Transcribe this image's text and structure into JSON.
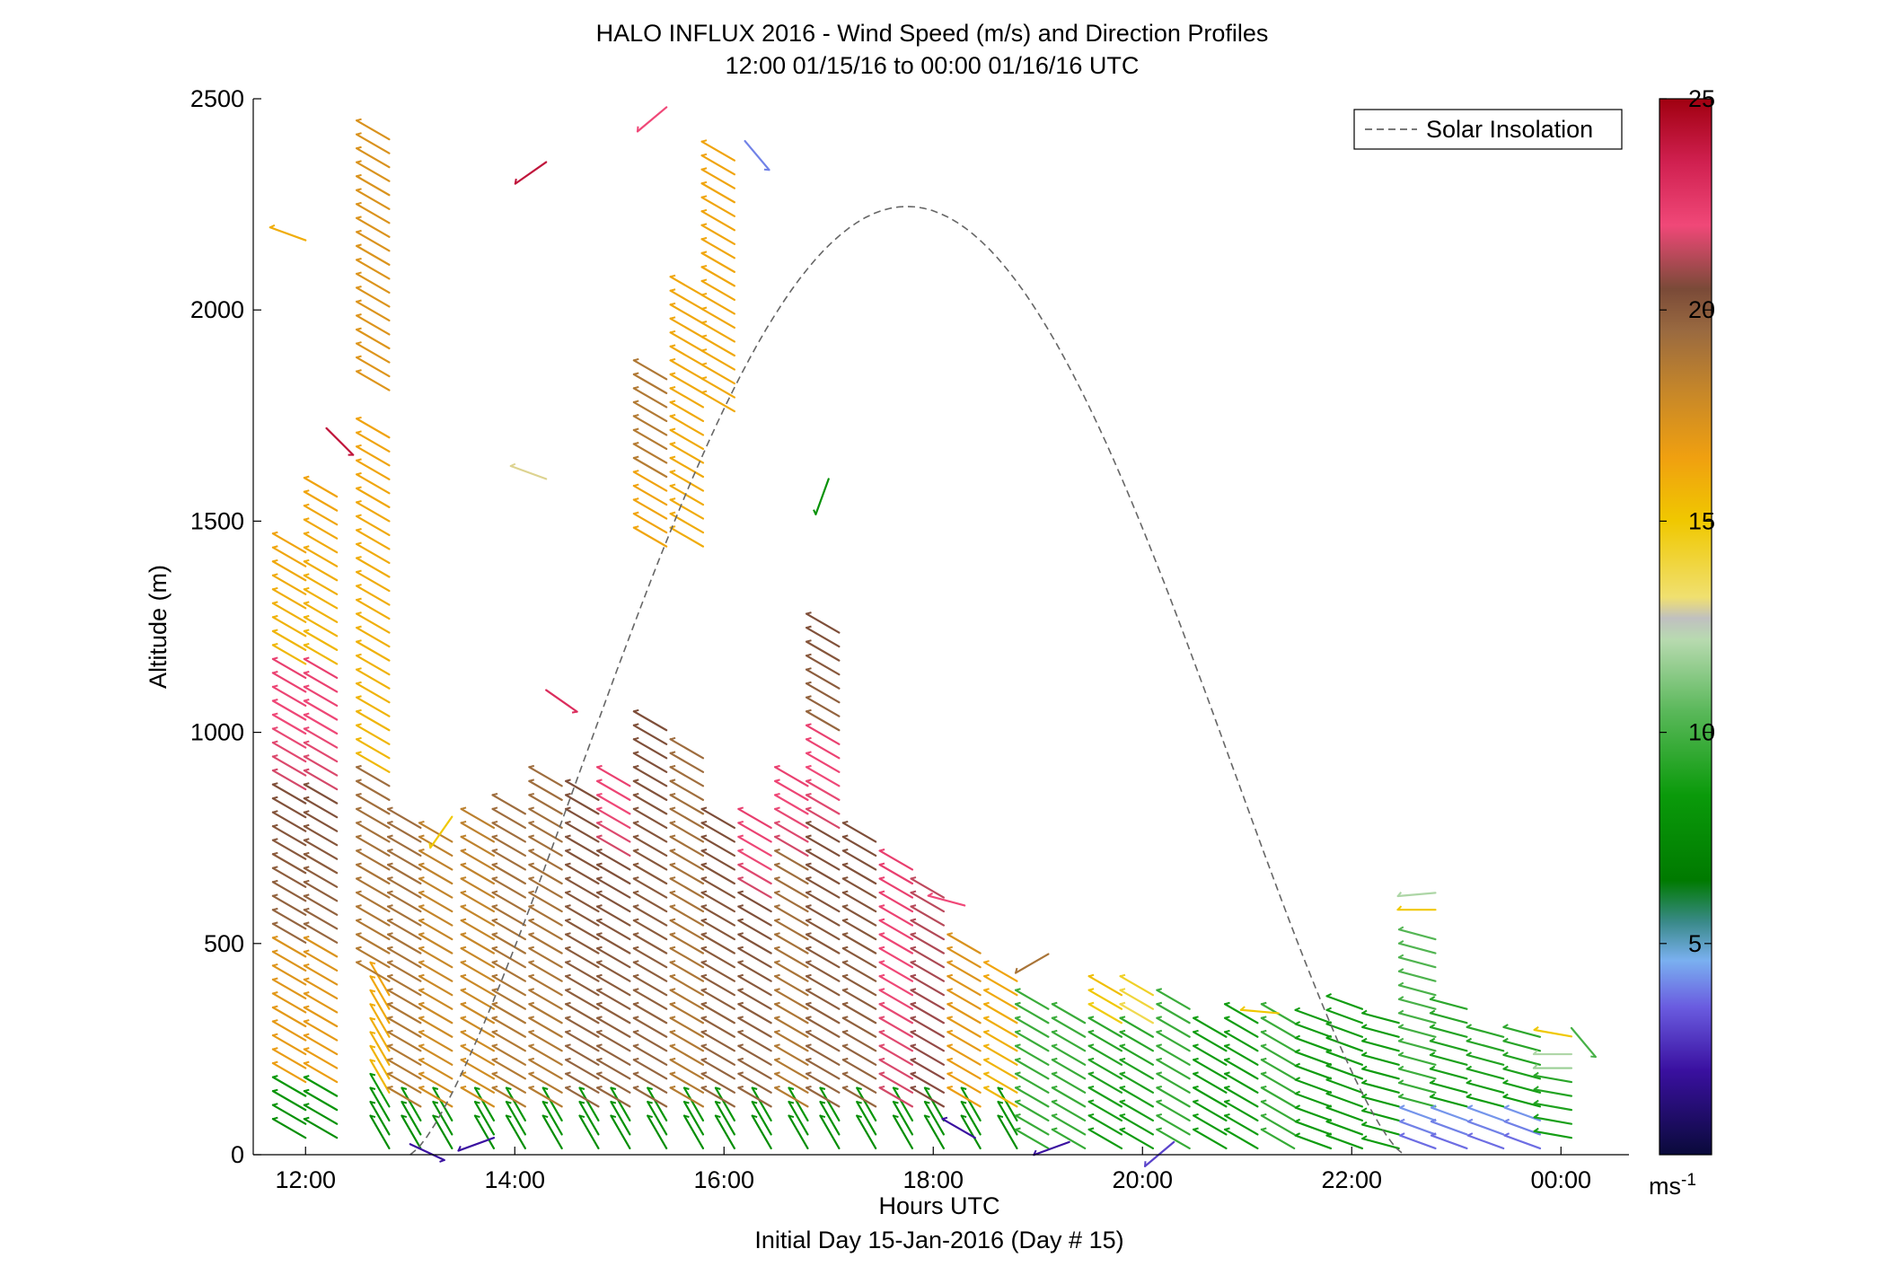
{
  "chart_data": {
    "type": "wind_barb_profile",
    "title": "HALO INFLUX 2016 - Wind Speed (m/s) and Direction Profiles",
    "subtitle": "12:00 01/15/16 to 00:00 01/16/16  UTC",
    "xlabel": "Hours UTC",
    "xlabel2": "Initial Day 15-Jan-2016 (Day # 15)",
    "ylabel": "Altitude (m)",
    "xlim": [
      11.5,
      24.65
    ],
    "ylim": [
      0,
      2500
    ],
    "x_ticks": [
      {
        "value": 12,
        "label": "12:00"
      },
      {
        "value": 14,
        "label": "14:00"
      },
      {
        "value": 16,
        "label": "16:00"
      },
      {
        "value": 18,
        "label": "18:00"
      },
      {
        "value": 20,
        "label": "20:00"
      },
      {
        "value": 22,
        "label": "22:00"
      },
      {
        "value": 24,
        "label": "00:00"
      }
    ],
    "y_ticks": [
      {
        "value": 0,
        "label": "0"
      },
      {
        "value": 500,
        "label": "500"
      },
      {
        "value": 1000,
        "label": "1000"
      },
      {
        "value": 1500,
        "label": "1500"
      },
      {
        "value": 2000,
        "label": "2000"
      },
      {
        "value": 2500,
        "label": "2500"
      }
    ],
    "legend": {
      "entries": [
        {
          "name": "Solar Insolation",
          "style": "dashed",
          "color": "#666666"
        }
      ],
      "position": "top-right"
    },
    "colorbar": {
      "label": "ms-1",
      "range": [
        0,
        25
      ],
      "ticks": [
        {
          "value": 5,
          "label": "5"
        },
        {
          "value": 10,
          "label": "10"
        },
        {
          "value": 15,
          "label": "15"
        },
        {
          "value": 20,
          "label": "20"
        },
        {
          "value": 25,
          "label": "25"
        }
      ],
      "stops": [
        {
          "v": 0,
          "c": "#0a0a3a"
        },
        {
          "v": 2,
          "c": "#3a10a0"
        },
        {
          "v": 3.5,
          "c": "#6a5ce0"
        },
        {
          "v": 4.6,
          "c": "#7ab0f0"
        },
        {
          "v": 5.5,
          "c": "#3a8a8a"
        },
        {
          "v": 6.5,
          "c": "#007a00"
        },
        {
          "v": 8.5,
          "c": "#0a9a0a"
        },
        {
          "v": 10.5,
          "c": "#5ab85a"
        },
        {
          "v": 12.2,
          "c": "#b8dab0"
        },
        {
          "v": 12.7,
          "c": "#c0c0c0"
        },
        {
          "v": 13.2,
          "c": "#f0e070"
        },
        {
          "v": 15,
          "c": "#f0c800"
        },
        {
          "v": 16.5,
          "c": "#f0a010"
        },
        {
          "v": 18,
          "c": "#c88828"
        },
        {
          "v": 19.5,
          "c": "#9a6a40"
        },
        {
          "v": 20.5,
          "c": "#7a4a38"
        },
        {
          "v": 22,
          "c": "#f04878"
        },
        {
          "v": 23.5,
          "c": "#d02050"
        },
        {
          "v": 25,
          "c": "#a00010"
        }
      ]
    },
    "solar_curve": {
      "x0": 13.0,
      "x1": 22.5,
      "peak_x": 17.75,
      "peak_y": 2245
    },
    "profiles": [
      {
        "t": 12.0,
        "z0": 40,
        "z1": 1440,
        "dz": 33,
        "segs": [
          [
            0,
            150,
            8,
            300
          ],
          [
            150,
            500,
            17,
            300
          ],
          [
            500,
            850,
            20,
            300
          ],
          [
            850,
            1150,
            22,
            300
          ],
          [
            1150,
            1440,
            16,
            300
          ]
        ]
      },
      {
        "t": 12.3,
        "z0": 40,
        "z1": 1560,
        "dz": 33,
        "segs": [
          [
            0,
            150,
            8,
            300
          ],
          [
            150,
            500,
            17,
            300
          ],
          [
            500,
            850,
            20,
            300
          ],
          [
            850,
            1150,
            22,
            300
          ],
          [
            1150,
            1560,
            16,
            300
          ]
        ]
      },
      {
        "t": 12.8,
        "z0": 15,
        "z1": 1700,
        "dz": 33,
        "segs": [
          [
            0,
            120,
            8,
            330
          ],
          [
            120,
            400,
            16,
            330
          ],
          [
            400,
            900,
            19,
            300
          ],
          [
            900,
            1700,
            16,
            300
          ]
        ]
      },
      {
        "t": 12.8,
        "z0": 1810,
        "z1": 2420,
        "dz": 33,
        "segs": [
          [
            0,
            2500,
            17,
            300
          ]
        ]
      },
      {
        "t": 13.1,
        "z0": 15,
        "z1": 790,
        "dz": 33,
        "segs": [
          [
            0,
            100,
            8,
            330
          ],
          [
            100,
            790,
            19,
            300
          ]
        ]
      },
      {
        "t": 13.4,
        "z0": 15,
        "z1": 770,
        "dz": 33,
        "segs": [
          [
            0,
            100,
            8,
            330
          ],
          [
            100,
            770,
            18,
            300
          ]
        ]
      },
      {
        "t": 13.8,
        "z0": 15,
        "z1": 780,
        "dz": 33,
        "segs": [
          [
            0,
            100,
            8,
            330
          ],
          [
            100,
            780,
            18,
            300
          ]
        ]
      },
      {
        "t": 14.1,
        "z0": 15,
        "z1": 830,
        "dz": 33,
        "segs": [
          [
            0,
            100,
            8,
            330
          ],
          [
            100,
            830,
            19,
            300
          ]
        ]
      },
      {
        "t": 14.45,
        "z0": 15,
        "z1": 900,
        "dz": 33,
        "segs": [
          [
            0,
            100,
            8,
            330
          ],
          [
            100,
            900,
            19,
            300
          ]
        ]
      },
      {
        "t": 14.8,
        "z0": 15,
        "z1": 860,
        "dz": 33,
        "segs": [
          [
            0,
            100,
            8,
            330
          ],
          [
            100,
            860,
            20,
            300
          ]
        ]
      },
      {
        "t": 15.1,
        "z0": 15,
        "z1": 900,
        "dz": 33,
        "segs": [
          [
            0,
            100,
            8,
            330
          ],
          [
            100,
            700,
            20,
            300
          ],
          [
            700,
            900,
            22,
            300
          ]
        ]
      },
      {
        "t": 15.45,
        "z0": 15,
        "z1": 1020,
        "dz": 33,
        "segs": [
          [
            0,
            100,
            8,
            330
          ],
          [
            100,
            1020,
            20,
            300
          ]
        ]
      },
      {
        "t": 15.45,
        "z0": 1440,
        "z1": 1860,
        "dz": 33,
        "segs": [
          [
            0,
            1600,
            16,
            300
          ],
          [
            1600,
            2500,
            19,
            300
          ]
        ]
      },
      {
        "t": 15.8,
        "z0": 15,
        "z1": 960,
        "dz": 33,
        "segs": [
          [
            0,
            100,
            8,
            330
          ],
          [
            100,
            960,
            19,
            300
          ]
        ]
      },
      {
        "t": 15.8,
        "z0": 1440,
        "z1": 2040,
        "dz": 33,
        "segs": [
          [
            0,
            2500,
            16,
            300
          ]
        ]
      },
      {
        "t": 16.1,
        "z0": 15,
        "z1": 780,
        "dz": 33,
        "segs": [
          [
            0,
            100,
            8,
            330
          ],
          [
            100,
            780,
            20,
            300
          ]
        ]
      },
      {
        "t": 16.1,
        "z0": 1760,
        "z1": 2370,
        "dz": 33,
        "segs": [
          [
            0,
            2500,
            16,
            300
          ]
        ]
      },
      {
        "t": 16.45,
        "z0": 15,
        "z1": 780,
        "dz": 33,
        "segs": [
          [
            0,
            100,
            8,
            330
          ],
          [
            100,
            600,
            20,
            300
          ],
          [
            600,
            780,
            22,
            300
          ]
        ]
      },
      {
        "t": 16.8,
        "z0": 15,
        "z1": 900,
        "dz": 33,
        "segs": [
          [
            0,
            100,
            8,
            330
          ],
          [
            100,
            700,
            19,
            300
          ],
          [
            700,
            900,
            22,
            300
          ]
        ]
      },
      {
        "t": 17.1,
        "z0": 15,
        "z1": 1240,
        "dz": 33,
        "segs": [
          [
            0,
            100,
            8,
            330
          ],
          [
            100,
            750,
            20,
            300
          ],
          [
            750,
            1000,
            22,
            300
          ],
          [
            1000,
            1240,
            20,
            300
          ]
        ]
      },
      {
        "t": 17.45,
        "z0": 15,
        "z1": 750,
        "dz": 33,
        "segs": [
          [
            0,
            100,
            8,
            330
          ],
          [
            100,
            750,
            20,
            300
          ]
        ]
      },
      {
        "t": 17.8,
        "z0": 15,
        "z1": 690,
        "dz": 33,
        "segs": [
          [
            0,
            100,
            8,
            330
          ],
          [
            100,
            690,
            22,
            300
          ]
        ]
      },
      {
        "t": 18.1,
        "z0": 15,
        "z1": 620,
        "dz": 33,
        "segs": [
          [
            0,
            100,
            8,
            330
          ],
          [
            100,
            620,
            21,
            300
          ]
        ]
      },
      {
        "t": 18.45,
        "z0": 15,
        "z1": 490,
        "dz": 33,
        "segs": [
          [
            0,
            100,
            8,
            330
          ],
          [
            100,
            490,
            17,
            300
          ]
        ]
      },
      {
        "t": 18.8,
        "z0": 15,
        "z1": 440,
        "dz": 33,
        "segs": [
          [
            0,
            100,
            8,
            330
          ],
          [
            100,
            440,
            16,
            300
          ]
        ]
      },
      {
        "t": 19.1,
        "z0": 15,
        "z1": 360,
        "dz": 33,
        "segs": [
          [
            0,
            2500,
            10,
            300
          ]
        ]
      },
      {
        "t": 19.45,
        "z0": 15,
        "z1": 330,
        "dz": 33,
        "segs": [
          [
            0,
            2500,
            10,
            300
          ]
        ]
      },
      {
        "t": 19.8,
        "z0": 15,
        "z1": 380,
        "dz": 33,
        "segs": [
          [
            0,
            300,
            9,
            300
          ],
          [
            300,
            380,
            15,
            300
          ]
        ]
      },
      {
        "t": 20.1,
        "z0": 15,
        "z1": 380,
        "dz": 33,
        "segs": [
          [
            0,
            300,
            9,
            300
          ],
          [
            300,
            380,
            14,
            300
          ]
        ]
      },
      {
        "t": 20.45,
        "z0": 15,
        "z1": 360,
        "dz": 33,
        "segs": [
          [
            0,
            2500,
            10,
            300
          ]
        ]
      },
      {
        "t": 20.8,
        "z0": 15,
        "z1": 310,
        "dz": 33,
        "segs": [
          [
            0,
            2500,
            9,
            300
          ]
        ]
      },
      {
        "t": 21.1,
        "z0": 15,
        "z1": 320,
        "dz": 33,
        "segs": [
          [
            0,
            2500,
            9,
            300
          ]
        ]
      },
      {
        "t": 21.45,
        "z0": 15,
        "z1": 320,
        "dz": 33,
        "segs": [
          [
            0,
            2500,
            10,
            300
          ]
        ]
      },
      {
        "t": 21.8,
        "z0": 15,
        "z1": 340,
        "dz": 33,
        "segs": [
          [
            0,
            2500,
            9,
            290
          ]
        ]
      },
      {
        "t": 22.1,
        "z0": 15,
        "z1": 370,
        "dz": 33,
        "segs": [
          [
            0,
            2500,
            9,
            290
          ]
        ]
      },
      {
        "t": 22.45,
        "z0": 15,
        "z1": 340,
        "dz": 33,
        "segs": [
          [
            0,
            2500,
            9,
            285
          ]
        ]
      },
      {
        "t": 22.8,
        "z0": 15,
        "z1": 540,
        "dz": 33,
        "segs": [
          [
            0,
            100,
            4,
            290
          ],
          [
            100,
            540,
            10,
            285
          ]
        ]
      },
      {
        "t": 23.1,
        "z0": 15,
        "z1": 360,
        "dz": 33,
        "segs": [
          [
            0,
            100,
            4,
            290
          ],
          [
            100,
            360,
            9,
            285
          ]
        ]
      },
      {
        "t": 23.45,
        "z0": 15,
        "z1": 290,
        "dz": 33,
        "segs": [
          [
            0,
            100,
            4,
            290
          ],
          [
            100,
            290,
            9,
            285
          ]
        ]
      },
      {
        "t": 23.8,
        "z0": 15,
        "z1": 280,
        "dz": 33,
        "segs": [
          [
            0,
            100,
            4,
            290
          ],
          [
            100,
            280,
            9,
            285
          ]
        ]
      },
      {
        "t": 24.1,
        "z0": 40,
        "z1": 270,
        "dz": 33,
        "segs": [
          [
            0,
            200,
            9,
            280
          ],
          [
            200,
            270,
            12,
            270
          ]
        ]
      }
    ],
    "isolated_barbs": [
      {
        "t": 12.0,
        "z": 2165,
        "v": 16,
        "d": 290
      },
      {
        "t": 12.2,
        "z": 1720,
        "v": 24,
        "d": 135
      },
      {
        "t": 13.4,
        "z": 800,
        "v": 15,
        "d": 215
      },
      {
        "t": 14.3,
        "z": 2350,
        "v": 24,
        "d": 235
      },
      {
        "t": 14.3,
        "z": 1600,
        "v": 13,
        "d": 290
      },
      {
        "t": 14.3,
        "z": 1100,
        "v": 23,
        "d": 125
      },
      {
        "t": 15.45,
        "z": 2480,
        "v": 22,
        "d": 230
      },
      {
        "t": 16.2,
        "z": 2400,
        "v": 4,
        "d": 140
      },
      {
        "t": 17.0,
        "z": 1600,
        "v": 8,
        "d": 200
      },
      {
        "t": 18.3,
        "z": 590,
        "v": 22,
        "d": 285
      },
      {
        "t": 19.1,
        "z": 475,
        "v": 19,
        "d": 240
      },
      {
        "t": 21.3,
        "z": 335,
        "v": 15,
        "d": 275
      },
      {
        "t": 22.8,
        "z": 620,
        "v": 12,
        "d": 265
      },
      {
        "t": 22.8,
        "z": 580,
        "v": 15,
        "d": 270
      },
      {
        "t": 24.1,
        "z": 280,
        "v": 15,
        "d": 280
      },
      {
        "t": 24.1,
        "z": 300,
        "v": 10,
        "d": 140
      },
      {
        "t": 13.0,
        "z": 25,
        "v": 2,
        "d": 115
      },
      {
        "t": 13.8,
        "z": 40,
        "v": 2,
        "d": 250
      },
      {
        "t": 18.4,
        "z": 40,
        "v": 2,
        "d": 300
      },
      {
        "t": 19.3,
        "z": 30,
        "v": 2,
        "d": 250
      },
      {
        "t": 20.3,
        "z": 30,
        "v": 3,
        "d": 230
      }
    ]
  }
}
